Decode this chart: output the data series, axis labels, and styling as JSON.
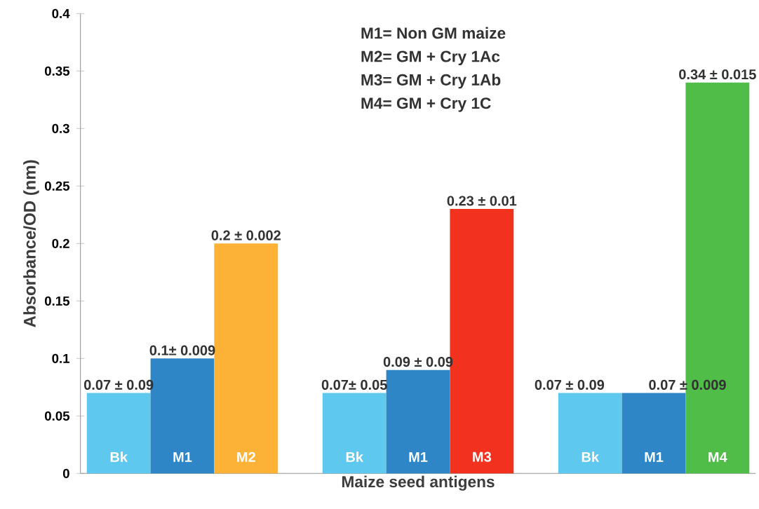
{
  "chart_data": {
    "type": "bar",
    "xlabel": "Maize seed antigens",
    "ylabel": "Absorbance/OD (nm)",
    "categories": [
      "Bk",
      "M1",
      "M2",
      "Bk",
      "M1",
      "M3",
      "Bk",
      "M1",
      "M4"
    ],
    "values": [
      0.07,
      0.1,
      0.2,
      0.07,
      0.09,
      0.23,
      0.07,
      0.07,
      0.34
    ],
    "colors": [
      "#5ec8ee",
      "#2f86c6",
      "#fbb236",
      "#5ec8ee",
      "#2f86c6",
      "#f2321f",
      "#5ec8ee",
      "#2f86c6",
      "#4fbd48"
    ],
    "value_labels": [
      "0.07 ± 0.09",
      "0.1± 0.009",
      "0.2 ± 0.002",
      "0.07± 0.05",
      "0.09 ± 0.09",
      "0.23 ± 0.01",
      "0.07 ± 0.09",
      "0.07 ± 0.009",
      "0.34 ± 0.015"
    ],
    "ylim": [
      0,
      0.4
    ],
    "yticks": [
      0,
      0.05,
      0.1,
      0.15,
      0.2,
      0.25,
      0.3,
      0.35,
      0.4
    ],
    "annotations": [
      "M1= Non GM maize",
      "M2= GM + Cry 1Ac",
      "M3= GM + Cry 1Ab",
      "M4= GM + Cry 1C"
    ]
  }
}
